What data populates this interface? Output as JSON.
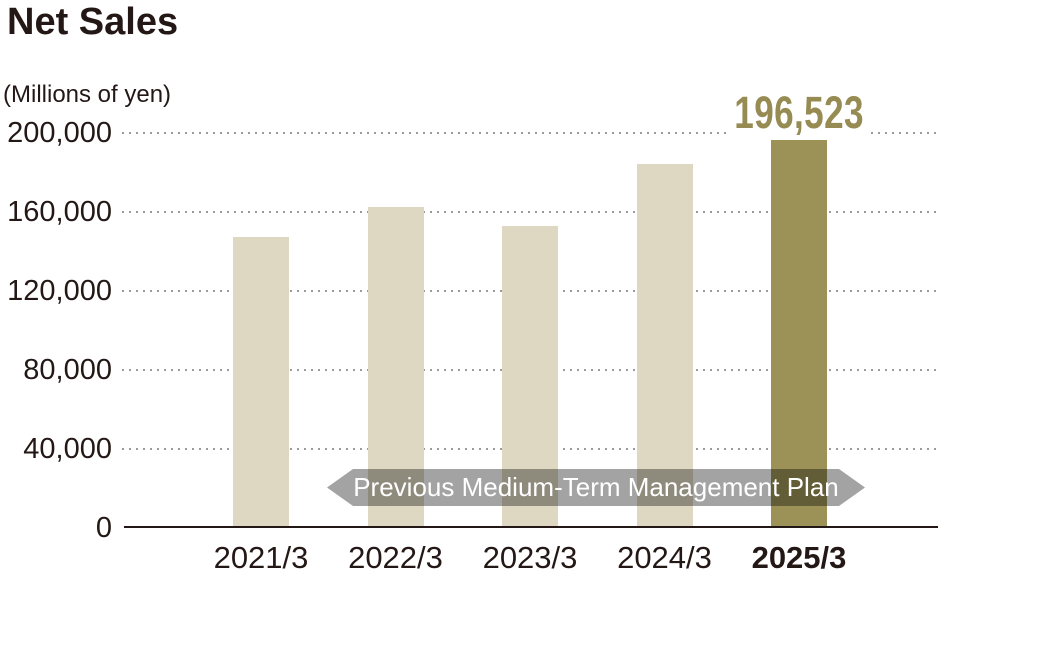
{
  "title": "Net Sales",
  "unit_label": "(Millions of yen)",
  "annotation": {
    "value_label": "196,523"
  },
  "ribbon": {
    "label": "Previous Medium-Term Management Plan"
  },
  "colors": {
    "bar": "#ded8c2",
    "highlight_bar": "#9c9257",
    "value_label": "#968b52",
    "text": "#231815",
    "grid": "#9b9b9b",
    "ribbon_bg": "rgba(0,0,0,0.36)",
    "ribbon_text": "#ffffff"
  },
  "chart_data": {
    "type": "bar",
    "title": "Net Sales",
    "ylabel": "(Millions of yen)",
    "categories": [
      "2021/3",
      "2022/3",
      "2023/3",
      "2024/3",
      "2025/3"
    ],
    "values": [
      147300,
      162400,
      152900,
      184300,
      196523
    ],
    "value_labels": [
      null,
      null,
      null,
      null,
      "196,523"
    ],
    "highlight_index": 4,
    "ylim": [
      0,
      200000
    ],
    "ytick_interval": 40000,
    "ytick_labels": [
      "0",
      "40,000",
      "80,000",
      "120,000",
      "160,000",
      "200,000"
    ],
    "grid": "horizontal-dotted",
    "legend": null,
    "annotations": [
      {
        "type": "ribbon",
        "text": "Previous Medium-Term Management Plan"
      },
      {
        "type": "data-label",
        "text": "196,523",
        "category": "2025/3"
      }
    ]
  }
}
